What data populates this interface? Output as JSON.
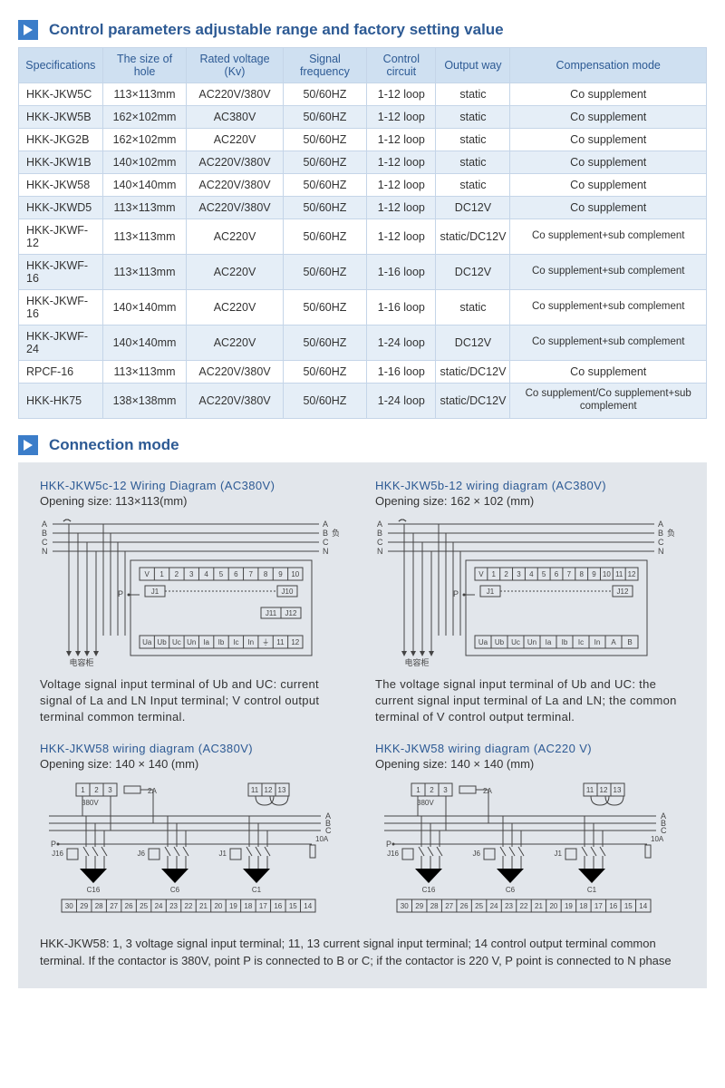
{
  "section1": {
    "title": "Control parameters adjustable range and factory setting value"
  },
  "section2": {
    "title": "Connection mode"
  },
  "table": {
    "columns": [
      "Specifications",
      "The size of hole",
      "Rated voltage (Kv)",
      "Signal frequency",
      "Control circuit",
      "Output way",
      "Compensation mode"
    ],
    "rows": [
      [
        "HKK-JKW5C",
        "113×113mm",
        "AC220V/380V",
        "50/60HZ",
        "1-12 loop",
        "static",
        "Co supplement"
      ],
      [
        "HKK-JKW5B",
        "162×102mm",
        "AC380V",
        "50/60HZ",
        "1-12 loop",
        "static",
        "Co supplement"
      ],
      [
        "HKK-JKG2B",
        "162×102mm",
        "AC220V",
        "50/60HZ",
        "1-12 loop",
        "static",
        "Co supplement"
      ],
      [
        "HKK-JKW1B",
        "140×102mm",
        "AC220V/380V",
        "50/60HZ",
        "1-12 loop",
        "static",
        "Co supplement"
      ],
      [
        "HKK-JKW58",
        "140×140mm",
        "AC220V/380V",
        "50/60HZ",
        "1-12 loop",
        "static",
        "Co supplement"
      ],
      [
        "HKK-JKWD5",
        "113×113mm",
        "AC220V/380V",
        "50/60HZ",
        "1-12 loop",
        "DC12V",
        "Co supplement"
      ],
      [
        "HKK-JKWF-12",
        "113×113mm",
        "AC220V",
        "50/60HZ",
        "1-12 loop",
        "static/DC12V",
        "Co supplement+sub complement"
      ],
      [
        "HKK-JKWF-16",
        "113×113mm",
        "AC220V",
        "50/60HZ",
        "1-16 loop",
        "DC12V",
        "Co supplement+sub complement"
      ],
      [
        "HKK-JKWF-16",
        "140×140mm",
        "AC220V",
        "50/60HZ",
        "1-16 loop",
        "static",
        "Co supplement+sub complement"
      ],
      [
        "HKK-JKWF-24",
        "140×140mm",
        "AC220V",
        "50/60HZ",
        "1-24 loop",
        "DC12V",
        "Co supplement+sub complement"
      ],
      [
        "RPCF-16",
        "113×113mm",
        "AC220V/380V",
        "50/60HZ",
        "1-16 loop",
        "static/DC12V",
        "Co supplement"
      ],
      [
        "HKK-HK75",
        "138×138mm",
        "AC220V/380V",
        "50/60HZ",
        "1-24 loop",
        "static/DC12V",
        "Co supplement/Co supplement+sub complement"
      ]
    ],
    "header_bg": "#cfe0f1",
    "row_even_bg": "#e5eef7",
    "row_odd_bg": "#ffffff",
    "border_color": "#c5d5e8",
    "header_text_color": "#2d5a94"
  },
  "diagrams": {
    "d1": {
      "title": "HKK-JKW5c-12 Wiring Diagram (AC380V)",
      "opening": "Opening size: 113×113(mm)",
      "abc_labels": [
        "A",
        "B",
        "C",
        "N"
      ],
      "top_cells": [
        "V",
        "1",
        "2",
        "3",
        "4",
        "5",
        "6",
        "7",
        "8",
        "9",
        "10"
      ],
      "j_left": "J1",
      "j_right": "J10",
      "j_bottom": [
        "J11",
        "J12"
      ],
      "p_label": "P",
      "capacitor_label": "电容柜",
      "bottom_cells": [
        "Ua",
        "Ub",
        "Uc",
        "Un",
        "Ia",
        "Ib",
        "Ic",
        "In",
        "⏚",
        "11",
        "12"
      ],
      "right_label": "负载",
      "desc": "Voltage signal input terminal of Ub and UC: current signal of La and LN Input terminal; V control output terminal common terminal."
    },
    "d2": {
      "title": "HKK-JKW5b-12 wiring diagram (AC380V)",
      "opening": "Opening size: 162 × 102 (mm)",
      "abc_labels": [
        "A",
        "B",
        "C",
        "N"
      ],
      "top_cells": [
        "V",
        "1",
        "2",
        "3",
        "4",
        "5",
        "6",
        "7",
        "8",
        "9",
        "10",
        "11",
        "12"
      ],
      "j_left": "J1",
      "j_right": "J12",
      "p_label": "P",
      "capacitor_label": "电容柜",
      "bottom_cells": [
        "Ua",
        "Ub",
        "Uc",
        "Un",
        "Ia",
        "Ib",
        "Ic",
        "In",
        "A",
        "B"
      ],
      "right_label": "负载",
      "desc": "The voltage signal input terminal of Ub and UC: the current signal input terminal of La and LN; the common terminal of V control output terminal."
    },
    "d3": {
      "title": "HKK-JKW58 wiring diagram (AC380V)",
      "opening": "Opening size: 140 × 140 (mm)",
      "top_block": [
        "1",
        "2",
        "3"
      ],
      "fuse_label": "2A",
      "volt_label": "380V",
      "ct_block": [
        "11",
        "12",
        "13"
      ],
      "abc_labels": [
        "A",
        "B",
        "C"
      ],
      "p_label": "P",
      "amp_label": "10A",
      "j_labels": [
        "J16",
        "J6",
        "J1"
      ],
      "c_labels": [
        "C16",
        "C6",
        "C1"
      ],
      "bottom_cells": [
        "30",
        "29",
        "28",
        "27",
        "26",
        "25",
        "24",
        "23",
        "22",
        "21",
        "20",
        "19",
        "18",
        "17",
        "16",
        "15",
        "14"
      ]
    },
    "d4": {
      "title": "HKK-JKW58 wiring diagram (AC220 V)",
      "opening": "Opening size: 140 × 140 (mm)",
      "top_block": [
        "1",
        "2",
        "3"
      ],
      "fuse_label": "2A",
      "volt_label": "380V",
      "ct_block": [
        "11",
        "12",
        "13"
      ],
      "abc_labels": [
        "A",
        "B",
        "C"
      ],
      "p_label": "P",
      "amp_label": "10A",
      "j_labels": [
        "J16",
        "J6",
        "J1"
      ],
      "c_labels": [
        "C16",
        "C6",
        "C1"
      ],
      "bottom_cells": [
        "30",
        "29",
        "28",
        "27",
        "26",
        "25",
        "24",
        "23",
        "22",
        "21",
        "20",
        "19",
        "18",
        "17",
        "16",
        "15",
        "14"
      ]
    },
    "bottom_note": "HKK-JKW58: 1, 3 voltage signal input terminal; 11, 13 current signal input terminal; 14 control output terminal common terminal. If the contactor is 380V, point P is connected to B or C; if the contactor is 220 V, P point is connected to N phase"
  },
  "style": {
    "accent": "#3b7dc9",
    "heading_color": "#2d5a94",
    "panel_bg": "#e2e6eb"
  }
}
